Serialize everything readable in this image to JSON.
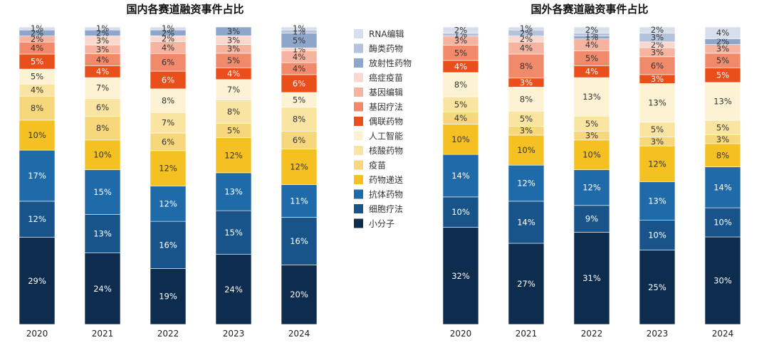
{
  "chart_data": [
    {
      "type": "bar",
      "stacked": true,
      "title": "国内各赛道融资事件占比",
      "categories": [
        "2020",
        "2021",
        "2022",
        "2023",
        "2024"
      ],
      "series": [
        {
          "name": "小分子",
          "values": [
            29,
            24,
            19,
            24,
            20
          ]
        },
        {
          "name": "细胞疗法",
          "values": [
            12,
            13,
            16,
            15,
            16
          ]
        },
        {
          "name": "抗体药物",
          "values": [
            17,
            15,
            12,
            13,
            11
          ]
        },
        {
          "name": "药物递送",
          "values": [
            10,
            10,
            12,
            12,
            12
          ]
        },
        {
          "name": "疫苗",
          "values": [
            8,
            8,
            6,
            5,
            6
          ]
        },
        {
          "name": "核酸药物",
          "values": [
            4,
            6,
            7,
            8,
            8
          ]
        },
        {
          "name": "人工智能",
          "values": [
            5,
            7,
            8,
            7,
            5
          ]
        },
        {
          "name": "偶联药物",
          "values": [
            5,
            4,
            6,
            4,
            6
          ]
        },
        {
          "name": "基因疗法",
          "values": [
            4,
            4,
            6,
            5,
            4
          ]
        },
        {
          "name": "基因编辑",
          "values": [
            2,
            3,
            4,
            3,
            4
          ]
        },
        {
          "name": "癌症疫苗",
          "values": [
            0,
            3,
            2,
            3,
            1
          ]
        },
        {
          "name": "放射性药物",
          "values": [
            2,
            2,
            2,
            3,
            5
          ]
        },
        {
          "name": "酶类药物",
          "values": [
            0,
            0,
            0,
            0,
            1
          ]
        },
        {
          "name": "RNA编辑",
          "values": [
            1,
            1,
            1,
            0,
            1
          ]
        }
      ],
      "legend": "right",
      "grid": false
    },
    {
      "type": "bar",
      "stacked": true,
      "title": "国外各赛道融资事件占比",
      "categories": [
        "2020",
        "2021",
        "2022",
        "2023",
        "2024"
      ],
      "series": [
        {
          "name": "小分子",
          "values": [
            32,
            27,
            31,
            25,
            30
          ]
        },
        {
          "name": "细胞疗法",
          "values": [
            10,
            14,
            9,
            10,
            10
          ]
        },
        {
          "name": "抗体药物",
          "values": [
            14,
            12,
            12,
            13,
            14
          ]
        },
        {
          "name": "药物递送",
          "values": [
            10,
            10,
            10,
            12,
            8
          ]
        },
        {
          "name": "疫苗",
          "values": [
            4,
            3,
            3,
            3,
            3
          ]
        },
        {
          "name": "核酸药物",
          "values": [
            5,
            5,
            5,
            5,
            5
          ]
        },
        {
          "name": "人工智能",
          "values": [
            8,
            8,
            13,
            13,
            13
          ]
        },
        {
          "name": "偶联药物",
          "values": [
            4,
            3,
            4,
            3,
            5
          ]
        },
        {
          "name": "基因疗法",
          "values": [
            5,
            8,
            5,
            6,
            5
          ]
        },
        {
          "name": "基因编辑",
          "values": [
            3,
            4,
            4,
            3,
            3
          ]
        },
        {
          "name": "癌症疫苗",
          "values": [
            0,
            2,
            0,
            2,
            0
          ]
        },
        {
          "name": "放射性药物",
          "values": [
            0,
            0,
            1,
            0,
            2
          ]
        },
        {
          "name": "酶类药物",
          "values": [
            1,
            2,
            1,
            3,
            0
          ]
        },
        {
          "name": "RNA编辑",
          "values": [
            2,
            1,
            2,
            2,
            4
          ]
        }
      ],
      "grid": false
    }
  ],
  "legend": {
    "items": [
      "RNA编辑",
      "酶类药物",
      "放射性药物",
      "癌症疫苗",
      "基因编辑",
      "基因疗法",
      "偶联药物",
      "人工智能",
      "核酸药物",
      "疫苗",
      "药物递送",
      "抗体药物",
      "细胞疗法",
      "小分子"
    ]
  },
  "colors": {
    "小分子": "#0d2c4e",
    "细胞疗法": "#18548a",
    "抗体药物": "#1f6aa8",
    "药物递送": "#f5c122",
    "疫苗": "#f7d77c",
    "核酸药物": "#fae4a2",
    "人工智能": "#fdf3d4",
    "偶联药物": "#e94e1b",
    "基因疗法": "#f08a6a",
    "基因编辑": "#f5b3a0",
    "癌症疫苗": "#fad8ce",
    "放射性药物": "#8fa6cb",
    "酶类药物": "#b4c2dc",
    "RNA编辑": "#d8dfec"
  },
  "light_text_series": [
    "小分子",
    "细胞疗法",
    "抗体药物",
    "偶联药物"
  ]
}
